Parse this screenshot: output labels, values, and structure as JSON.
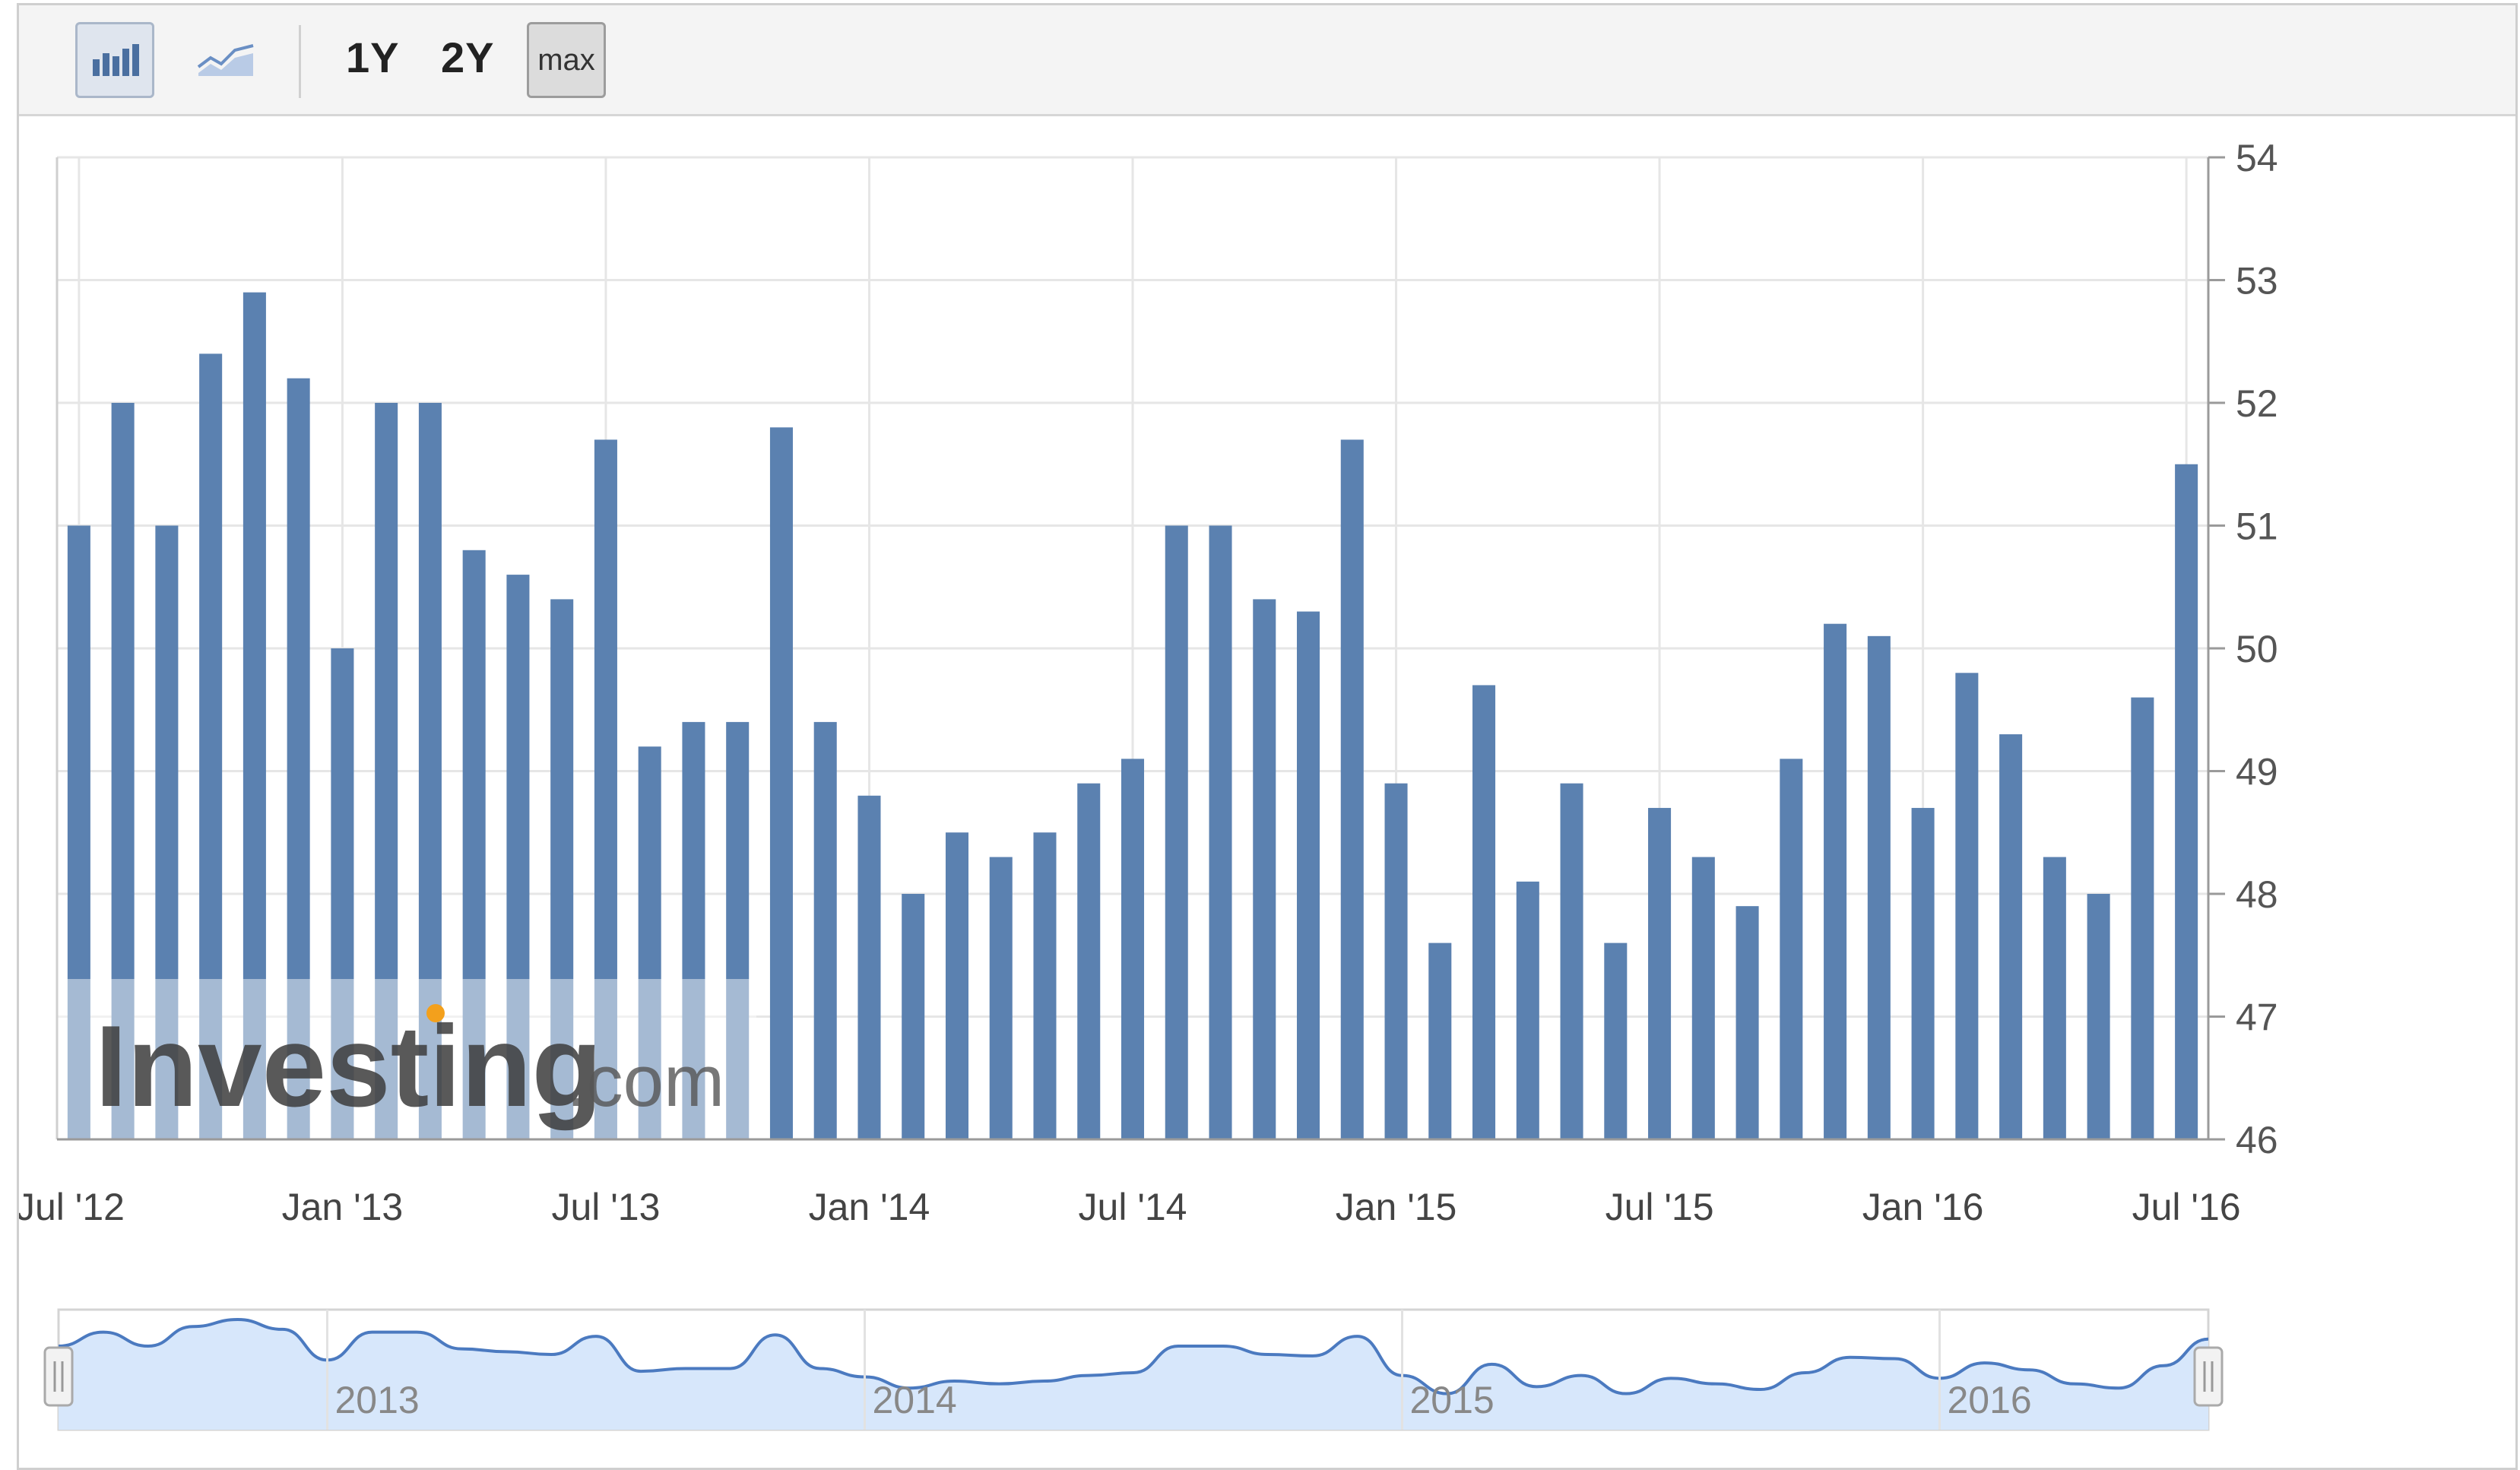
{
  "toolbar": {
    "chart_type_buttons": [
      {
        "icon": "bar-chart-icon",
        "selected": true
      },
      {
        "icon": "line-chart-icon",
        "selected": false
      }
    ],
    "ranges": [
      "1Y",
      "2Y",
      "max"
    ],
    "selected_range": "max"
  },
  "watermark": {
    "brand": "Investing",
    "suffix": ".com"
  },
  "colors": {
    "bar": "#5b81b0",
    "grid": "#e6e6e6",
    "navigator_fill": "#d7e7fb",
    "navigator_line": "#4b7ac0"
  },
  "chart_data": {
    "type": "bar",
    "title": "",
    "xlabel": "",
    "ylabel": "",
    "ylim": [
      46,
      54
    ],
    "y_ticks": [
      "54",
      "53",
      "52",
      "51",
      "50",
      "49",
      "48",
      "47",
      "46"
    ],
    "x_tick_labels": [
      "Jul '12",
      "Jan '13",
      "Jul '13",
      "Jan '14",
      "Jul '14",
      "Jan '15",
      "Jul '15",
      "Jan '16",
      "Jul '16"
    ],
    "y_axis_position": "right",
    "grid": true,
    "categories": [
      "2012-07",
      "2012-08",
      "2012-09",
      "2012-10",
      "2012-11",
      "2012-12",
      "2013-01",
      "2013-02",
      "2013-03",
      "2013-04",
      "2013-05",
      "2013-06",
      "2013-07",
      "2013-08",
      "2013-09",
      "2013-10",
      "2013-11",
      "2013-12",
      "2014-01",
      "2014-02",
      "2014-03",
      "2014-04",
      "2014-05",
      "2014-06",
      "2014-07",
      "2014-08",
      "2014-09",
      "2014-10",
      "2014-11",
      "2014-12",
      "2015-01",
      "2015-02",
      "2015-03",
      "2015-04",
      "2015-05",
      "2015-06",
      "2015-07",
      "2015-08",
      "2015-09",
      "2015-10",
      "2015-11",
      "2015-12",
      "2016-01",
      "2016-02",
      "2016-03",
      "2016-04",
      "2016-05",
      "2016-06",
      "2016-07"
    ],
    "values": [
      51.0,
      52.0,
      51.0,
      52.4,
      52.9,
      52.2,
      50.0,
      52.0,
      52.0,
      50.8,
      50.6,
      50.4,
      51.7,
      49.2,
      49.4,
      49.4,
      51.8,
      49.4,
      48.8,
      48.0,
      48.5,
      48.3,
      48.5,
      48.9,
      49.1,
      51.0,
      51.0,
      50.4,
      50.3,
      51.7,
      48.9,
      47.6,
      49.7,
      48.1,
      48.9,
      47.6,
      48.7,
      48.3,
      47.9,
      49.1,
      50.2,
      50.1,
      48.7,
      49.8,
      49.3,
      48.3,
      48.0,
      49.6,
      51.5
    ]
  },
  "navigator": {
    "year_labels": [
      "2013",
      "2014",
      "2015",
      "2016"
    ]
  }
}
